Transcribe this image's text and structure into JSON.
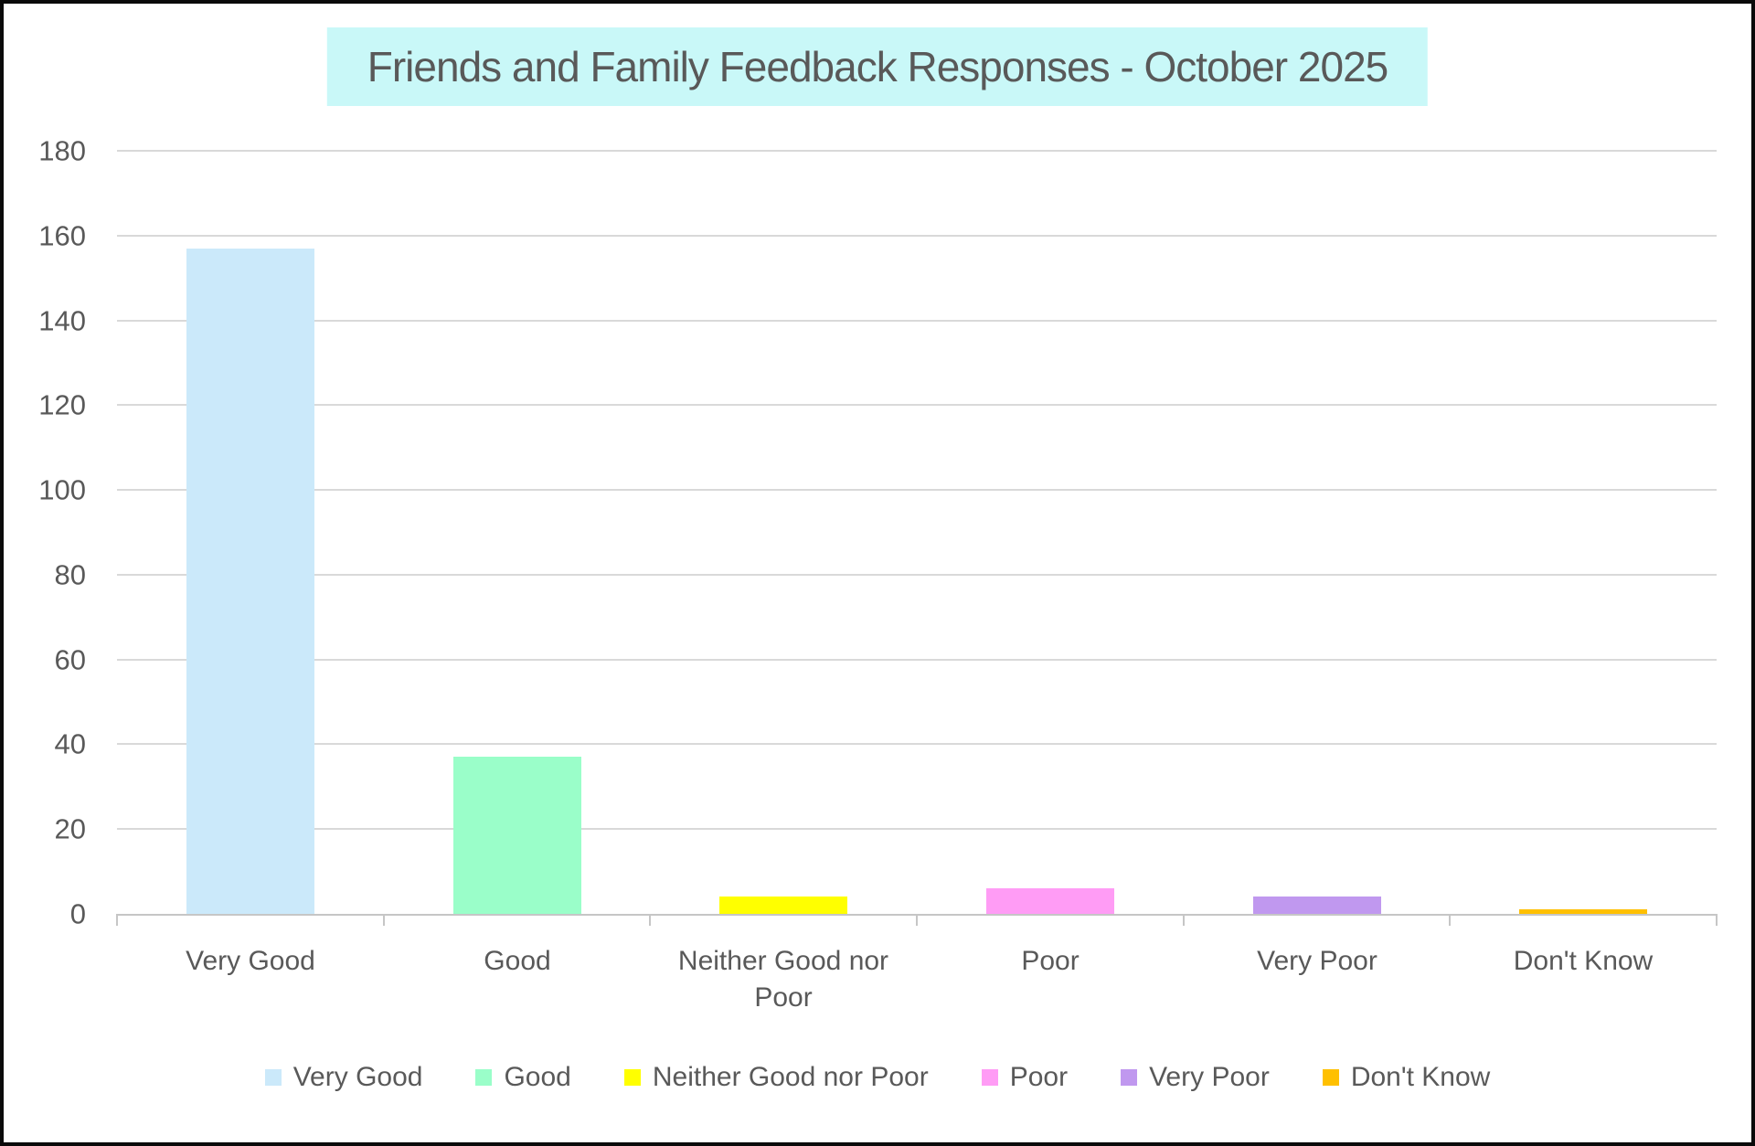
{
  "chart_data": {
    "type": "bar",
    "title": "Friends and Family Feedback Responses - October 2025",
    "categories": [
      "Very Good",
      "Good",
      "Neither Good nor Poor",
      "Poor",
      "Very Poor",
      "Don't Know"
    ],
    "values": [
      157,
      37,
      4,
      6,
      4,
      1
    ],
    "bar_colors": [
      "#CBE9FA",
      "#9AFEC9",
      "#FFFF00",
      "#FF9CF5",
      "#C098EF",
      "#FFC000"
    ],
    "xlabel": "",
    "ylabel": "",
    "ylim": [
      0,
      180
    ],
    "ytick_step": 20,
    "grid": true,
    "legend_position": "bottom",
    "legend_labels": [
      "Very Good",
      "Good",
      "Neither Good nor Poor",
      "Poor",
      "Very Poor",
      "Don't Know"
    ]
  },
  "style": {
    "title_background": "#C9F8F8",
    "text_color": "#595959",
    "gridline_color": "#D9D9D9",
    "axis_color": "#C6C6C6",
    "page_border_color": "#0A0A0A"
  }
}
